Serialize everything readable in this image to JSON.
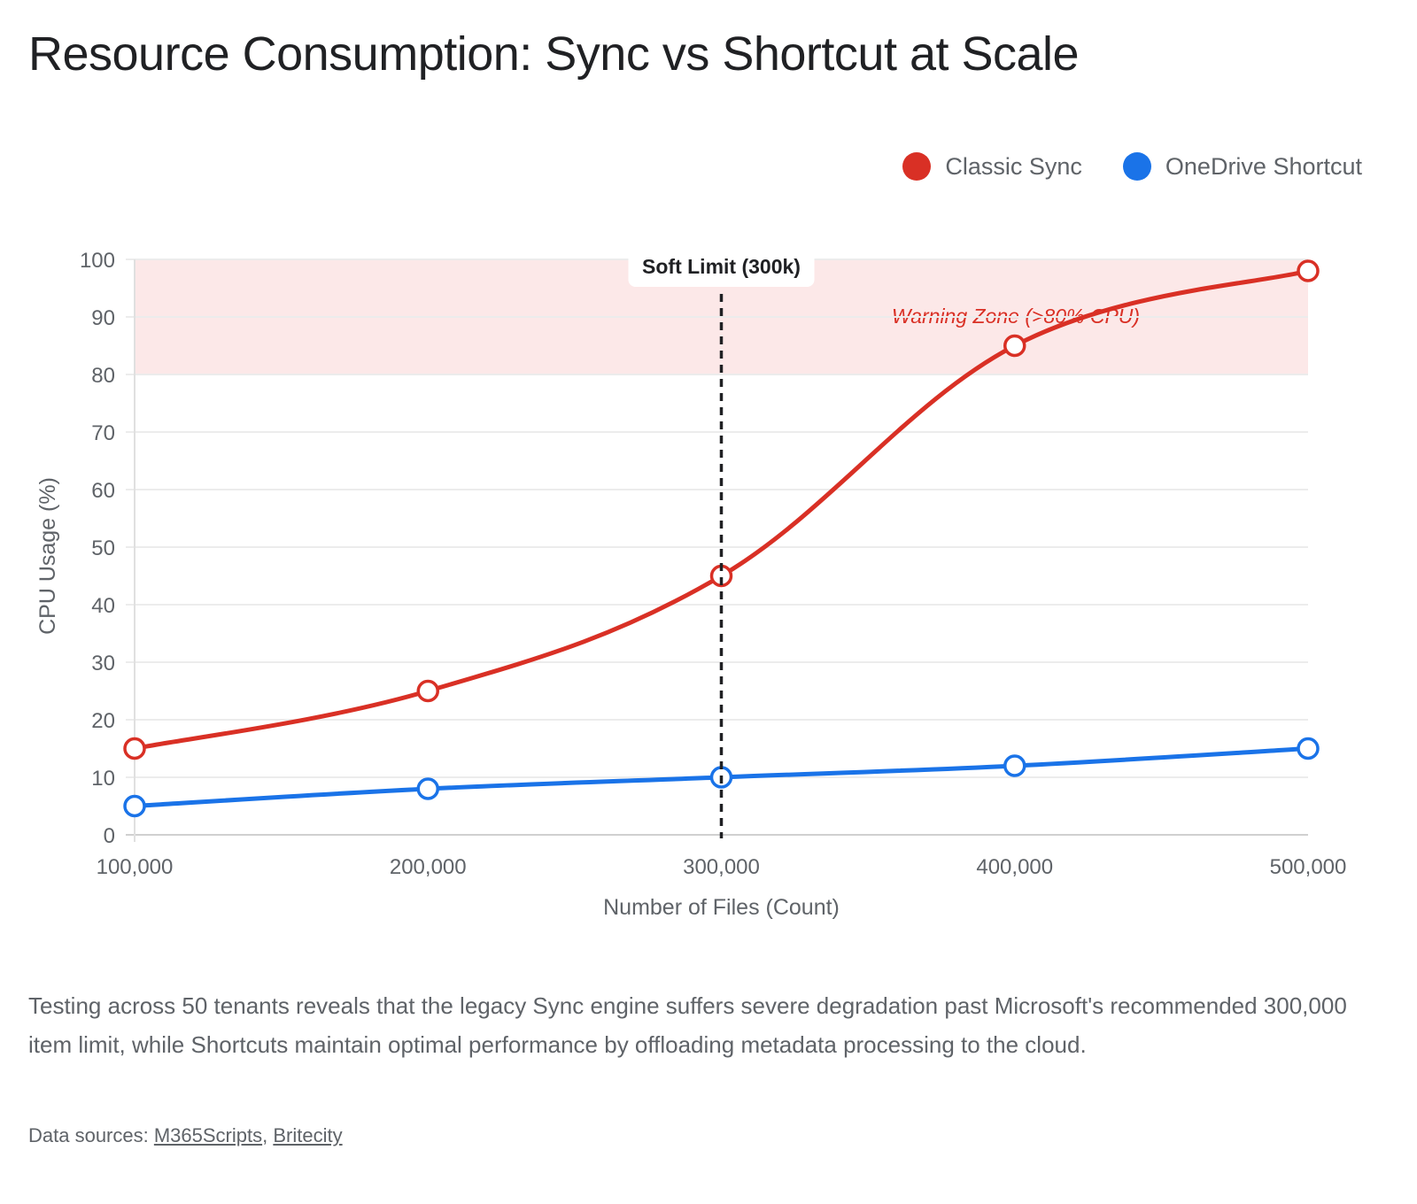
{
  "title": "Resource Consumption: Sync vs Shortcut at Scale",
  "legend": [
    {
      "label": "Classic Sync",
      "color": "#d93025"
    },
    {
      "label": "OneDrive Shortcut",
      "color": "#1a73e8"
    }
  ],
  "description": "Testing across 50 tenants reveals that the legacy Sync engine suffers severe degradation past Microsoft's recommended 300,000 item limit, while Shortcuts maintain optimal performance by offloading metadata processing to the cloud.",
  "sources": {
    "prefix": "Data sources: ",
    "links": [
      "M365Scripts",
      "Britecity"
    ],
    "separator": ", "
  },
  "chart_data": {
    "type": "line",
    "title": "Resource Consumption: Sync vs Shortcut at Scale",
    "xlabel": "Number of Files (Count)",
    "ylabel": "CPU Usage (%)",
    "x": [
      100000,
      200000,
      300000,
      400000,
      500000
    ],
    "x_tick_labels": [
      "100,000",
      "200,000",
      "300,000",
      "400,000",
      "500,000"
    ],
    "xlim": [
      100000,
      500000
    ],
    "ylim": [
      0,
      100
    ],
    "y_ticks": [
      0,
      10,
      20,
      30,
      40,
      50,
      60,
      70,
      80,
      90,
      100
    ],
    "grid": true,
    "legend_position": "top-right",
    "series": [
      {
        "name": "Classic Sync",
        "color": "#d93025",
        "values": [
          15,
          25,
          45,
          85,
          98
        ]
      },
      {
        "name": "OneDrive Shortcut",
        "color": "#1a73e8",
        "values": [
          5,
          8,
          10,
          12,
          15
        ]
      }
    ],
    "annotations": [
      {
        "type": "vertical-line",
        "x": 300000,
        "label": "Soft Limit (300k)",
        "style": "dashed",
        "color": "#202124"
      },
      {
        "type": "band",
        "y_from": 80,
        "y_to": 100,
        "label": "Warning Zone (>80% CPU)",
        "fill": "#fce8e8",
        "label_color": "#d93025"
      }
    ]
  }
}
